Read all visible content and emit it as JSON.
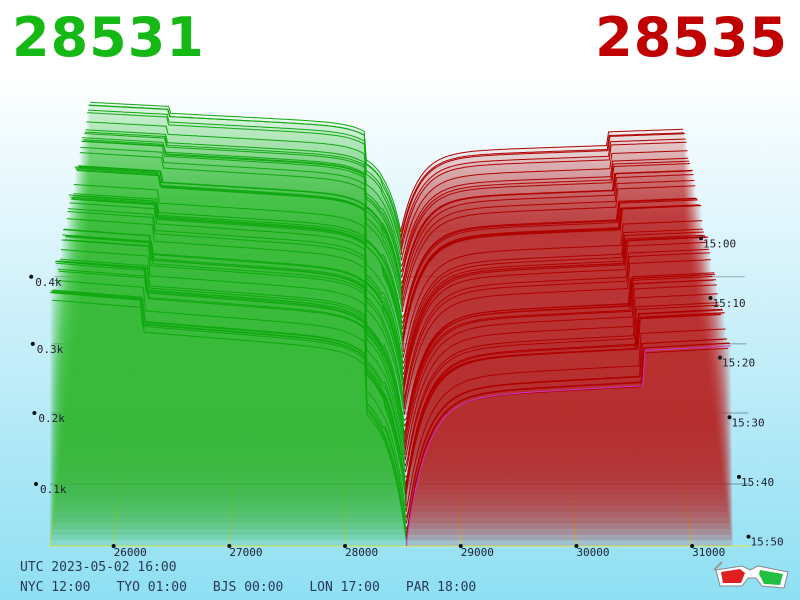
{
  "header": {
    "bid_price": "28531",
    "ask_price": "28535",
    "bid_color": "#16b816",
    "ask_color": "#c00000"
  },
  "footer": {
    "utc_time": "UTC 2023-05-02 16:00",
    "zones": [
      "NYC 12:00",
      "TYO 01:00",
      "BJS 00:00",
      "LON 17:00",
      "PAR 18:00"
    ]
  },
  "icon": "3d-glasses-icon",
  "chart_data": {
    "type": "area",
    "x_ticks": [
      "26000",
      "27000",
      "28000",
      "29000",
      "30000",
      "31000"
    ],
    "x_tick_values": [
      26000,
      27000,
      28000,
      29000,
      30000,
      31000
    ],
    "y_ticks": [
      "0.1k",
      "0.2k",
      "0.3k",
      "0.4k"
    ],
    "y_tick_values": [
      100,
      200,
      300,
      400
    ],
    "time_ticks": [
      "15:00",
      "15:10",
      "15:20",
      "15:30",
      "15:40",
      "15:50"
    ],
    "xlim": [
      25450,
      31500
    ],
    "ylim": [
      0,
      450
    ],
    "mid_price": 28533,
    "snapshot_count": 56,
    "bid_color": "#10a810",
    "ask_color": "#b00000",
    "latest_color": "#cc33cc",
    "grid_color": "#e8e840",
    "grid": true
  }
}
